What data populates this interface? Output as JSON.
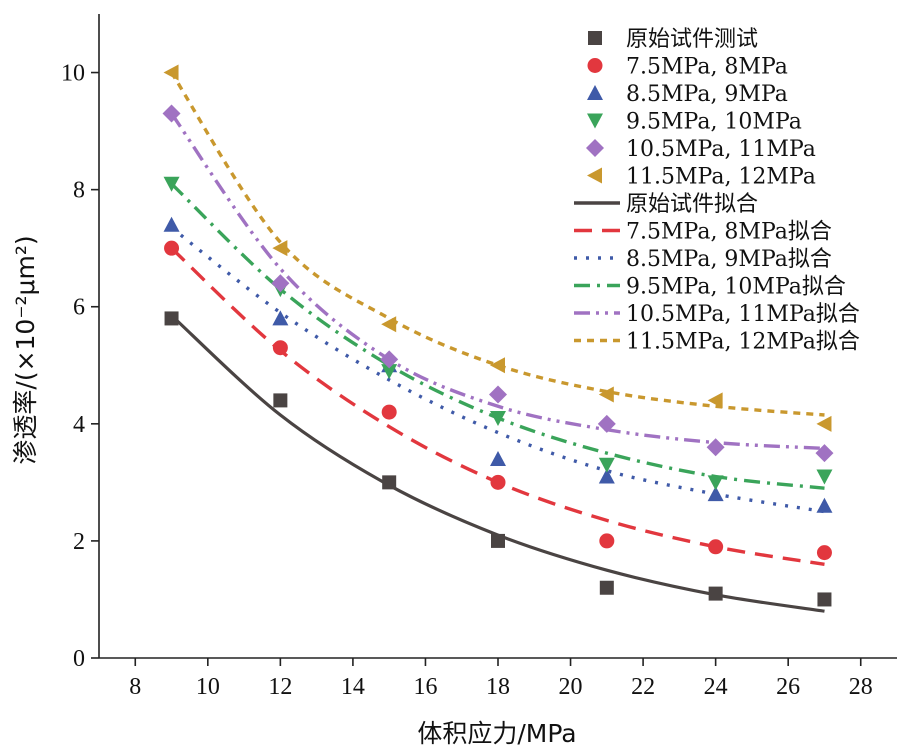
{
  "chart_data": {
    "type": "scatter",
    "xlabel": "体积应力/MPa",
    "ylabel": "渗透率/(×10⁻²μm²)",
    "xlim": [
      7,
      29
    ],
    "ylim": [
      0,
      11
    ],
    "xticks": [
      8,
      10,
      12,
      14,
      16,
      18,
      20,
      22,
      24,
      26,
      28
    ],
    "yticks": [
      0,
      2,
      4,
      6,
      8,
      10
    ],
    "grid": false,
    "legend_position": "top-right",
    "x": [
      9,
      12,
      15,
      18,
      21,
      24,
      27
    ],
    "series": [
      {
        "name": "原始试件测试",
        "marker": "square",
        "color": "#4a4443",
        "values": [
          5.8,
          4.4,
          3.0,
          2.0,
          1.2,
          1.1,
          1.0
        ]
      },
      {
        "name": "7.5MPa, 8MPa",
        "marker": "circle",
        "color": "#e2373e",
        "values": [
          7.0,
          5.3,
          4.2,
          3.0,
          2.0,
          1.9,
          1.8
        ]
      },
      {
        "name": "8.5MPa, 9MPa",
        "marker": "triangle-up",
        "color": "#3f5aa8",
        "values": [
          7.4,
          5.8,
          5.0,
          3.4,
          3.1,
          2.8,
          2.6
        ]
      },
      {
        "name": "9.5MPa, 10MPa",
        "marker": "triangle-down",
        "color": "#3aa45a",
        "values": [
          8.1,
          6.3,
          4.9,
          4.1,
          3.3,
          3.0,
          3.1
        ]
      },
      {
        "name": "10.5MPa, 11MPa",
        "marker": "diamond",
        "color": "#a072c2",
        "values": [
          9.3,
          6.4,
          5.1,
          4.5,
          4.0,
          3.6,
          3.5
        ]
      },
      {
        "name": "11.5MPa, 12MPa",
        "marker": "triangle-left",
        "color": "#c9982e",
        "values": [
          10.0,
          7.0,
          5.7,
          5.0,
          4.5,
          4.4,
          4.0
        ]
      }
    ],
    "fits": [
      {
        "name": "原始试件拟合",
        "style": "solid",
        "color": "#4a4443",
        "x_range": [
          9,
          27
        ],
        "values": [
          5.85,
          4.15,
          2.95,
          2.1,
          1.5,
          1.08,
          0.8
        ]
      },
      {
        "name": "7.5MPa, 8MPa拟合",
        "style": "dash",
        "color": "#e2373e",
        "x_range": [
          9,
          27
        ],
        "values": [
          7.0,
          5.25,
          3.95,
          3.0,
          2.35,
          1.9,
          1.6
        ]
      },
      {
        "name": "8.5MPa, 9MPa拟合",
        "style": "dot",
        "color": "#3f5aa8",
        "x_range": [
          9,
          27
        ],
        "values": [
          7.35,
          5.9,
          4.75,
          3.85,
          3.2,
          2.8,
          2.5
        ]
      },
      {
        "name": "9.5MPa, 10MPa拟合",
        "style": "dashdot",
        "color": "#3aa45a",
        "x_range": [
          9,
          27
        ],
        "values": [
          8.1,
          6.3,
          5.0,
          4.1,
          3.5,
          3.1,
          2.9
        ]
      },
      {
        "name": "10.5MPa, 11MPa拟合",
        "style": "dashdotdot",
        "color": "#a072c2",
        "x_range": [
          9,
          27
        ],
        "values": [
          9.3,
          6.65,
          5.1,
          4.3,
          3.9,
          3.68,
          3.58
        ]
      },
      {
        "name": "11.5MPa, 12MPa拟合",
        "style": "shortdash",
        "color": "#c9982e",
        "x_range": [
          9,
          27
        ],
        "values": [
          10.0,
          7.1,
          5.8,
          5.0,
          4.55,
          4.3,
          4.15
        ]
      }
    ]
  }
}
